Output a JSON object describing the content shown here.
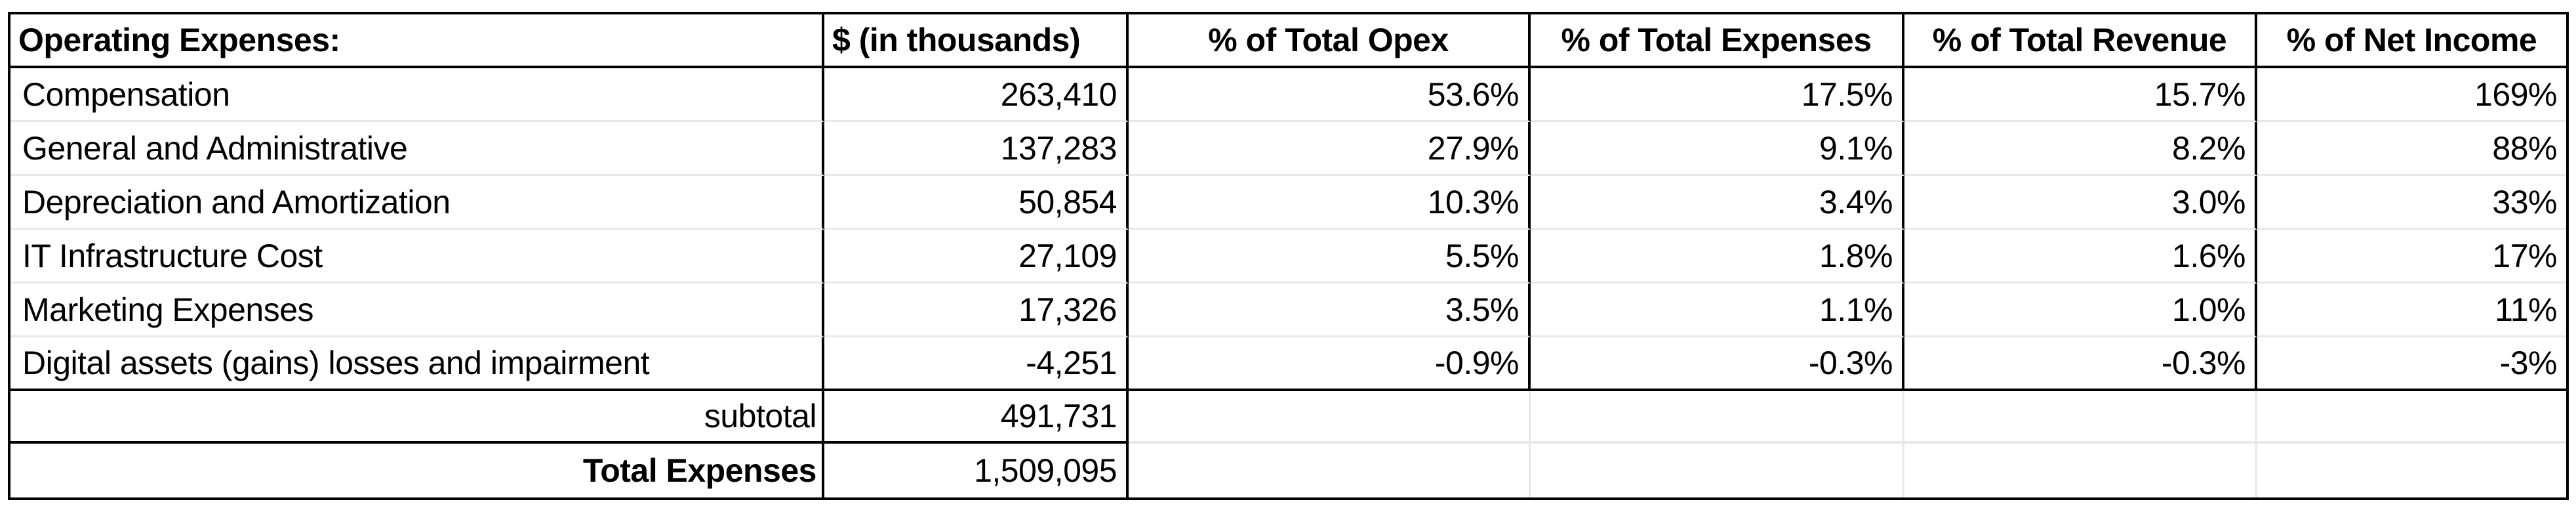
{
  "table": {
    "headers": [
      "Operating Expenses:",
      "$ (in thousands)",
      "% of Total Opex",
      "% of Total Expenses",
      "% of Total Revenue",
      "% of Net Income"
    ],
    "rows": [
      {
        "label": "Compensation",
        "amount": "263,410",
        "opex_pct": "53.6%",
        "expenses_pct": "17.5%",
        "revenue_pct": "15.7%",
        "net_income_pct": "169%"
      },
      {
        "label": "General and Administrative",
        "amount": "137,283",
        "opex_pct": "27.9%",
        "expenses_pct": "9.1%",
        "revenue_pct": "8.2%",
        "net_income_pct": "88%"
      },
      {
        "label": "Depreciation and Amortization",
        "amount": "50,854",
        "opex_pct": "10.3%",
        "expenses_pct": "3.4%",
        "revenue_pct": "3.0%",
        "net_income_pct": "33%"
      },
      {
        "label": "IT Infrastructure Cost",
        "amount": "27,109",
        "opex_pct": "5.5%",
        "expenses_pct": "1.8%",
        "revenue_pct": "1.6%",
        "net_income_pct": "17%"
      },
      {
        "label": "Marketing Expenses",
        "amount": "17,326",
        "opex_pct": "3.5%",
        "expenses_pct": "1.1%",
        "revenue_pct": "1.0%",
        "net_income_pct": "11%"
      },
      {
        "label": "Digital assets (gains) losses and impairment",
        "amount": "-4,251",
        "opex_pct": "-0.9%",
        "expenses_pct": "-0.3%",
        "revenue_pct": "-0.3%",
        "net_income_pct": "-3%"
      }
    ],
    "subtotal": {
      "label": "subtotal",
      "amount": "491,731"
    },
    "total": {
      "label": "Total Expenses",
      "amount": "1,509,095"
    }
  },
  "colors": {
    "border_black": "#000000",
    "grid_gray": "#e8e8e8",
    "background": "#ffffff",
    "text": "#000000"
  }
}
